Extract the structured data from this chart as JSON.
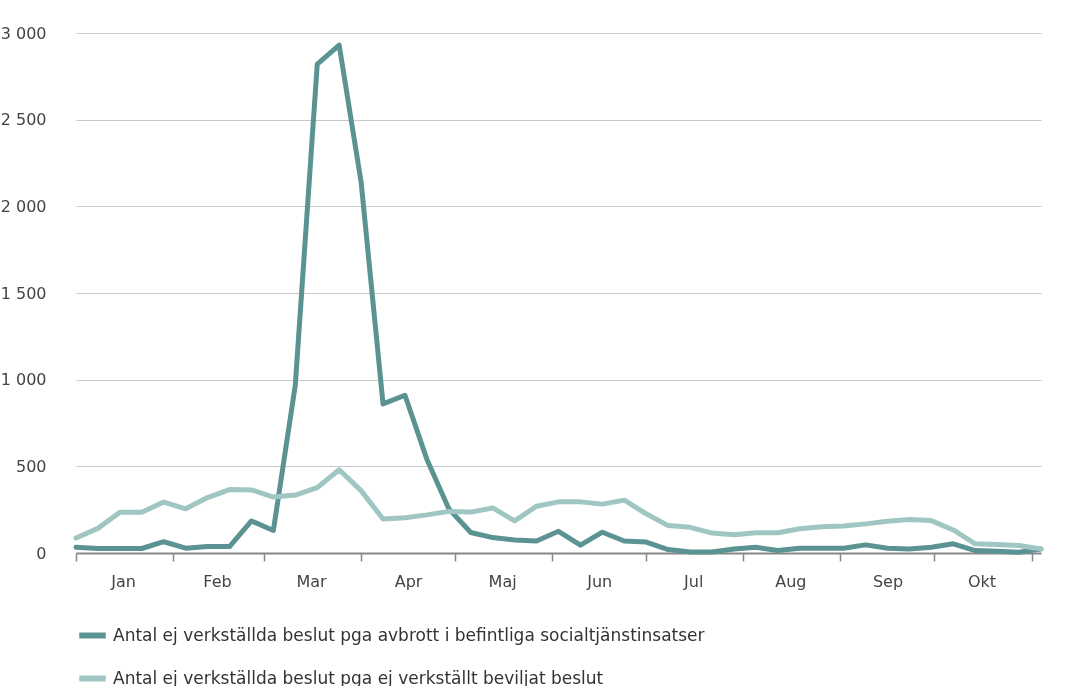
{
  "chart_data": {
    "type": "line",
    "x": [
      "--01-01",
      "--01-08",
      "--01-15",
      "--01-22",
      "--01-29",
      "--02-05",
      "--02-12",
      "--02-19",
      "--02-26",
      "--03-04",
      "--03-11",
      "--03-18",
      "--03-25",
      "--04-01",
      "--04-08",
      "--04-15",
      "--04-22",
      "--04-29",
      "--05-06",
      "--05-13",
      "--05-20",
      "--05-27",
      "--06-03",
      "--06-10",
      "--06-17",
      "--06-24",
      "--07-01",
      "--07-08",
      "--07-15",
      "--07-22",
      "--07-29",
      "--08-05",
      "--08-12",
      "--08-19",
      "--08-26",
      "--09-02",
      "--09-09",
      "--09-16",
      "--09-23",
      "--09-30",
      "--10-07",
      "--10-14",
      "--10-21",
      "--10-28",
      "--11-04"
    ],
    "series": [
      {
        "name": "Antal ej verkställda beslut pga avbrott i befintliga socialtjänstinsatser",
        "color": "#5b9393",
        "values": [
          33,
          26,
          26,
          26,
          65,
          28,
          37,
          37,
          185,
          130,
          970,
          2820,
          2930,
          2140,
          860,
          910,
          540,
          255,
          118,
          89,
          75,
          69,
          125,
          45,
          120,
          69,
          63,
          20,
          6,
          6,
          23,
          33,
          14,
          27,
          27,
          27,
          47,
          27,
          23,
          33,
          53,
          14,
          10,
          4,
          23
        ]
      },
      {
        "name": "Antal ej verkställda beslut pga ej verkställt beviljat beslut",
        "color": "#9fc6c3",
        "values": [
          87,
          142,
          235,
          235,
          294,
          255,
          320,
          366,
          364,
          323,
          334,
          377,
          480,
          360,
          196,
          203,
          220,
          240,
          236,
          260,
          185,
          270,
          295,
          295,
          282,
          305,
          226,
          158,
          148,
          115,
          105,
          117,
          117,
          140,
          152,
          156,
          168,
          183,
          193,
          187,
          133,
          53,
          49,
          43,
          23
        ]
      }
    ],
    "xlim": [
      "--01-01",
      "--11-04"
    ],
    "xticks": [
      {
        "value": "--01-01",
        "label": null
      },
      {
        "value": "--01-16",
        "label": "Jan"
      },
      {
        "value": "--02-01",
        "label": null
      },
      {
        "value": "--02-15",
        "label": "Feb"
      },
      {
        "value": "--03-01",
        "label": null
      },
      {
        "value": "--03-16",
        "label": "Mar"
      },
      {
        "value": "--04-01",
        "label": null
      },
      {
        "value": "--04-16",
        "label": "Apr"
      },
      {
        "value": "--05-01",
        "label": null
      },
      {
        "value": "--05-16",
        "label": "Maj"
      },
      {
        "value": "--06-01",
        "label": null
      },
      {
        "value": "--06-16",
        "label": "Jun"
      },
      {
        "value": "--07-01",
        "label": null
      },
      {
        "value": "--07-16",
        "label": "Jul"
      },
      {
        "value": "--08-01",
        "label": null
      },
      {
        "value": "--08-16",
        "label": "Aug"
      },
      {
        "value": "--09-01",
        "label": null
      },
      {
        "value": "--09-16",
        "label": "Sep"
      },
      {
        "value": "--10-01",
        "label": null
      },
      {
        "value": "--10-16",
        "label": "Okt"
      },
      {
        "value": "--11-01",
        "label": null
      }
    ],
    "ylim": [
      0,
      3000
    ],
    "yticks": [
      0,
      500,
      {
        "value": 1000,
        "label": "1 000"
      },
      {
        "value": 1500,
        "label": "1 500"
      },
      {
        "value": 2000,
        "label": "2 000"
      },
      {
        "value": 2500,
        "label": "2 500"
      },
      {
        "value": 3000,
        "label": "3 000"
      }
    ],
    "grid": "y",
    "legend": "bottom",
    "line_style": "solid"
  }
}
